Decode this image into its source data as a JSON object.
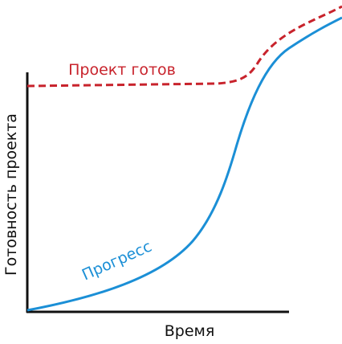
{
  "diagram": {
    "x_axis_label": "Время",
    "y_axis_label": "Готовность проекта",
    "target_label": "Проект готов",
    "progress_label": "Прогресс"
  }
}
